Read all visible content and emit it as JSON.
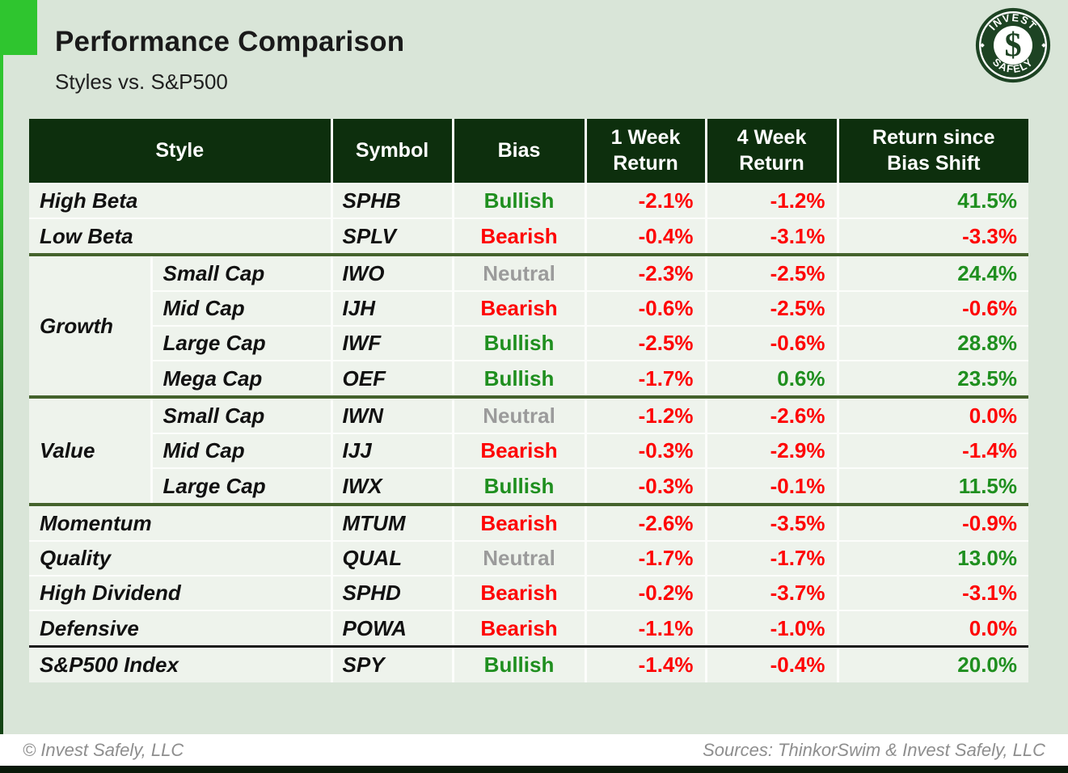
{
  "page": {
    "title": "Performance Comparison",
    "subtitle": "Styles vs. S&P500",
    "footer_left": "© Invest Safely, LLC",
    "footer_right": "Sources: ThinkorSwim & Invest Safely, LLC"
  },
  "logo": {
    "top_text": "INVEST",
    "bottom_text": "SAFELY",
    "monogram": "$"
  },
  "colors": {
    "accent_bright_green": "#2fc52f",
    "header_dark_green": "#0d2f0d",
    "row_background": "#eef3ec",
    "page_background": "#d9e5d8",
    "bullish_green": "#1f8f1f",
    "bearish_red": "#fe0505",
    "neutral_gray": "#9b9b9b",
    "section_divider_green": "#44622c",
    "benchmark_divider_black": "#1c1c1c"
  },
  "table": {
    "headers": {
      "style": "Style",
      "symbol": "Symbol",
      "bias": "Bias",
      "week1": "1 Week\nReturn",
      "week4": "4 Week\nReturn",
      "since": "Return since\nBias Shift"
    },
    "sections": [
      {
        "divider": "none",
        "group": null,
        "rows": [
          {
            "style": "High Beta",
            "symbol": "SPHB",
            "bias": "Bullish",
            "bias_tone": "bullish",
            "week1": "-2.1%",
            "week1_tone": "neg",
            "week4": "-1.2%",
            "week4_tone": "neg",
            "since": "41.5%",
            "since_tone": "pos"
          },
          {
            "style": "Low Beta",
            "symbol": "SPLV",
            "bias": "Bearish",
            "bias_tone": "bearish",
            "week1": "-0.4%",
            "week1_tone": "neg",
            "week4": "-3.1%",
            "week4_tone": "neg",
            "since": "-3.3%",
            "since_tone": "neg"
          }
        ]
      },
      {
        "divider": "green",
        "group": "Growth",
        "rows": [
          {
            "cap": "Small Cap",
            "symbol": "IWO",
            "bias": "Neutral",
            "bias_tone": "neutral",
            "week1": "-2.3%",
            "week1_tone": "neg",
            "week4": "-2.5%",
            "week4_tone": "neg",
            "since": "24.4%",
            "since_tone": "pos"
          },
          {
            "cap": "Mid Cap",
            "symbol": "IJH",
            "bias": "Bearish",
            "bias_tone": "bearish",
            "week1": "-0.6%",
            "week1_tone": "neg",
            "week4": "-2.5%",
            "week4_tone": "neg",
            "since": "-0.6%",
            "since_tone": "neg"
          },
          {
            "cap": "Large Cap",
            "symbol": "IWF",
            "bias": "Bullish",
            "bias_tone": "bullish",
            "week1": "-2.5%",
            "week1_tone": "neg",
            "week4": "-0.6%",
            "week4_tone": "neg",
            "since": "28.8%",
            "since_tone": "pos"
          },
          {
            "cap": "Mega Cap",
            "symbol": "OEF",
            "bias": "Bullish",
            "bias_tone": "bullish",
            "week1": "-1.7%",
            "week1_tone": "neg",
            "week4": "0.6%",
            "week4_tone": "pos",
            "since": "23.5%",
            "since_tone": "pos"
          }
        ]
      },
      {
        "divider": "green",
        "group": "Value",
        "rows": [
          {
            "cap": "Small Cap",
            "symbol": "IWN",
            "bias": "Neutral",
            "bias_tone": "neutral",
            "week1": "-1.2%",
            "week1_tone": "neg",
            "week4": "-2.6%",
            "week4_tone": "neg",
            "since": "0.0%",
            "since_tone": "neg"
          },
          {
            "cap": "Mid Cap",
            "symbol": "IJJ",
            "bias": "Bearish",
            "bias_tone": "bearish",
            "week1": "-0.3%",
            "week1_tone": "neg",
            "week4": "-2.9%",
            "week4_tone": "neg",
            "since": "-1.4%",
            "since_tone": "neg"
          },
          {
            "cap": "Large Cap",
            "symbol": "IWX",
            "bias": "Bullish",
            "bias_tone": "bullish",
            "week1": "-0.3%",
            "week1_tone": "neg",
            "week4": "-0.1%",
            "week4_tone": "neg",
            "since": "11.5%",
            "since_tone": "pos"
          }
        ]
      },
      {
        "divider": "green",
        "group": null,
        "rows": [
          {
            "style": "Momentum",
            "symbol": "MTUM",
            "bias": "Bearish",
            "bias_tone": "bearish",
            "week1": "-2.6%",
            "week1_tone": "neg",
            "week4": "-3.5%",
            "week4_tone": "neg",
            "since": "-0.9%",
            "since_tone": "neg"
          },
          {
            "style": "Quality",
            "symbol": "QUAL",
            "bias": "Neutral",
            "bias_tone": "neutral",
            "week1": "-1.7%",
            "week1_tone": "neg",
            "week4": "-1.7%",
            "week4_tone": "neg",
            "since": "13.0%",
            "since_tone": "pos"
          },
          {
            "style": "High Dividend",
            "symbol": "SPHD",
            "bias": "Bearish",
            "bias_tone": "bearish",
            "week1": "-0.2%",
            "week1_tone": "neg",
            "week4": "-3.7%",
            "week4_tone": "neg",
            "since": "-3.1%",
            "since_tone": "neg"
          },
          {
            "style": "Defensive",
            "symbol": "POWA",
            "bias": "Bearish",
            "bias_tone": "bearish",
            "week1": "-1.1%",
            "week1_tone": "neg",
            "week4": "-1.0%",
            "week4_tone": "neg",
            "since": "0.0%",
            "since_tone": "neg"
          }
        ]
      },
      {
        "divider": "black",
        "group": null,
        "rows": [
          {
            "style": "S&P500 Index",
            "symbol": "SPY",
            "bias": "Bullish",
            "bias_tone": "bullish",
            "week1": "-1.4%",
            "week1_tone": "neg",
            "week4": "-0.4%",
            "week4_tone": "neg",
            "since": "20.0%",
            "since_tone": "pos"
          }
        ]
      }
    ]
  },
  "chart_data": {
    "type": "table",
    "title": "Performance Comparison",
    "subtitle": "Styles vs. S&P500",
    "columns": [
      "Style",
      "Symbol",
      "Bias",
      "1 Week Return",
      "4 Week Return",
      "Return since Bias Shift"
    ],
    "rows": [
      [
        "High Beta",
        "SPHB",
        "Bullish",
        "-2.1%",
        "-1.2%",
        "41.5%"
      ],
      [
        "Low Beta",
        "SPLV",
        "Bearish",
        "-0.4%",
        "-3.1%",
        "-3.3%"
      ],
      [
        "Growth - Small Cap",
        "IWO",
        "Neutral",
        "-2.3%",
        "-2.5%",
        "24.4%"
      ],
      [
        "Growth - Mid Cap",
        "IJH",
        "Bearish",
        "-0.6%",
        "-2.5%",
        "-0.6%"
      ],
      [
        "Growth - Large Cap",
        "IWF",
        "Bullish",
        "-2.5%",
        "-0.6%",
        "28.8%"
      ],
      [
        "Growth - Mega Cap",
        "OEF",
        "Bullish",
        "-1.7%",
        "0.6%",
        "23.5%"
      ],
      [
        "Value - Small Cap",
        "IWN",
        "Neutral",
        "-1.2%",
        "-2.6%",
        "0.0%"
      ],
      [
        "Value - Mid Cap",
        "IJJ",
        "Bearish",
        "-0.3%",
        "-2.9%",
        "-1.4%"
      ],
      [
        "Value - Large Cap",
        "IWX",
        "Bullish",
        "-0.3%",
        "-0.1%",
        "11.5%"
      ],
      [
        "Momentum",
        "MTUM",
        "Bearish",
        "-2.6%",
        "-3.5%",
        "-0.9%"
      ],
      [
        "Quality",
        "QUAL",
        "Neutral",
        "-1.7%",
        "-1.7%",
        "13.0%"
      ],
      [
        "High Dividend",
        "SPHD",
        "Bearish",
        "-0.2%",
        "-3.7%",
        "-3.1%"
      ],
      [
        "Defensive",
        "POWA",
        "Bearish",
        "-1.1%",
        "-1.0%",
        "0.0%"
      ],
      [
        "S&P500 Index",
        "SPY",
        "Bullish",
        "-1.4%",
        "-0.4%",
        "20.0%"
      ]
    ]
  }
}
